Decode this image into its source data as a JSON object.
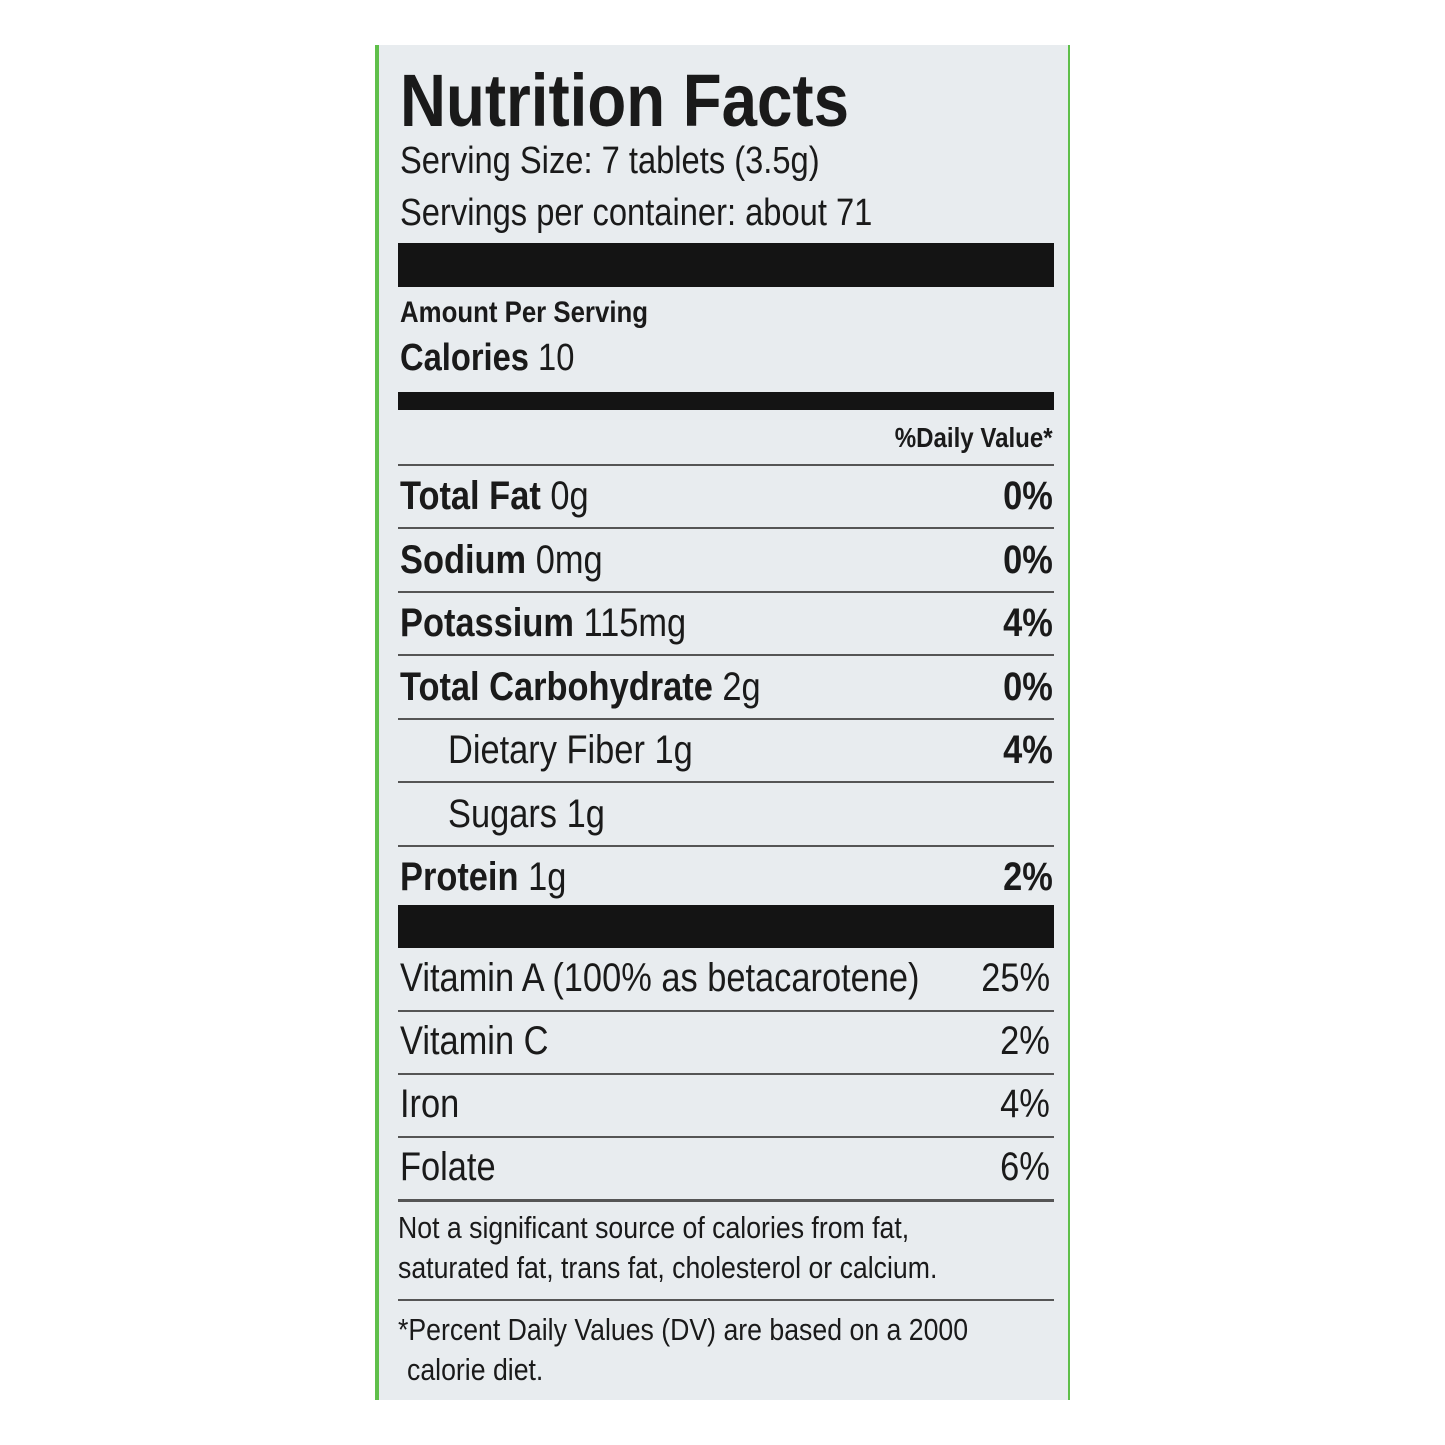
{
  "title": "Nutrition Facts",
  "serving_size": "Serving Size: 7 tablets (3.5g)",
  "servings_per_container": "Servings per container: about 71",
  "amount_per_serving": "Amount Per Serving",
  "calories": {
    "label": "Calories",
    "value": "10"
  },
  "daily_value_header": "%Daily Value*",
  "nutrients": [
    {
      "name": "Total Fat",
      "amount": "0g",
      "dv": "0%"
    },
    {
      "name": "Sodium",
      "amount": "0mg",
      "dv": "0%"
    },
    {
      "name": "Potassium",
      "amount": "115mg",
      "dv": "4%"
    },
    {
      "name": "Total Carbohydrate",
      "amount": "2g",
      "dv": "0%"
    },
    {
      "name": "Dietary Fiber",
      "amount": "1g",
      "dv": "4%"
    },
    {
      "name": "Sugars",
      "amount": "1g"
    },
    {
      "name": "Protein",
      "amount": "1g",
      "dv": "2%"
    }
  ],
  "vitamins": [
    {
      "name": "Vitamin A (100% as betacarotene)",
      "dv": "25%"
    },
    {
      "name": "Vitamin C",
      "dv": "2%"
    },
    {
      "name": "Iron",
      "dv": "4%"
    },
    {
      "name": "Folate",
      "dv": "6%"
    }
  ],
  "footnotes": [
    [
      "Not a significant source of calories from fat,",
      "saturated fat, trans fat, cholesterol or calcium."
    ],
    [
      "*Percent Daily Values (DV) are based on a 2000",
      "calorie diet."
    ]
  ]
}
